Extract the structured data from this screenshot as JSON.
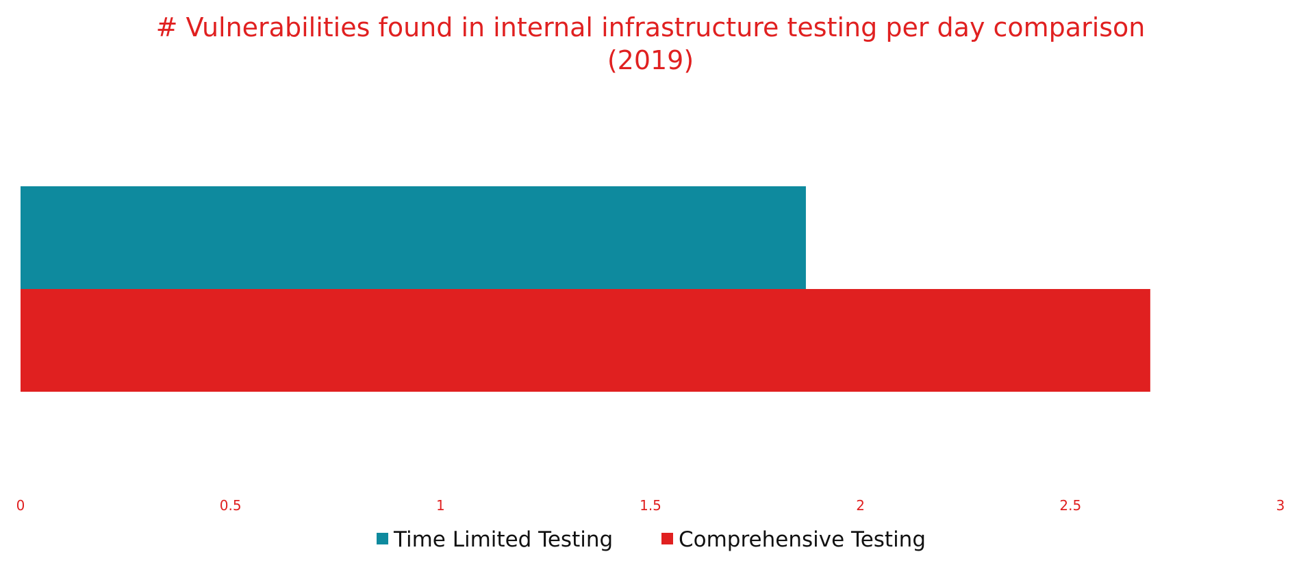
{
  "chart_data": {
    "type": "bar",
    "orientation": "horizontal",
    "title": "# Vulnerabilities found in internal infrastructure testing per day comparison",
    "subtitle": "(2019)",
    "xlabel": "",
    "ylabel": "",
    "xlim": [
      0,
      3
    ],
    "xticks": [
      "0",
      "0.5",
      "1",
      "1.5",
      "2",
      "2.5",
      "3"
    ],
    "grid": false,
    "legend_position": "bottom",
    "series": [
      {
        "name": "Time Limited Testing",
        "values": [
          1.87
        ],
        "color": "#0E8A9E"
      },
      {
        "name": "Comprehensive Testing",
        "values": [
          2.69
        ],
        "color": "#E02020"
      }
    ]
  },
  "colors": {
    "title": "#E02020",
    "tick_labels": "#E02020",
    "legend_text": "#111111"
  }
}
